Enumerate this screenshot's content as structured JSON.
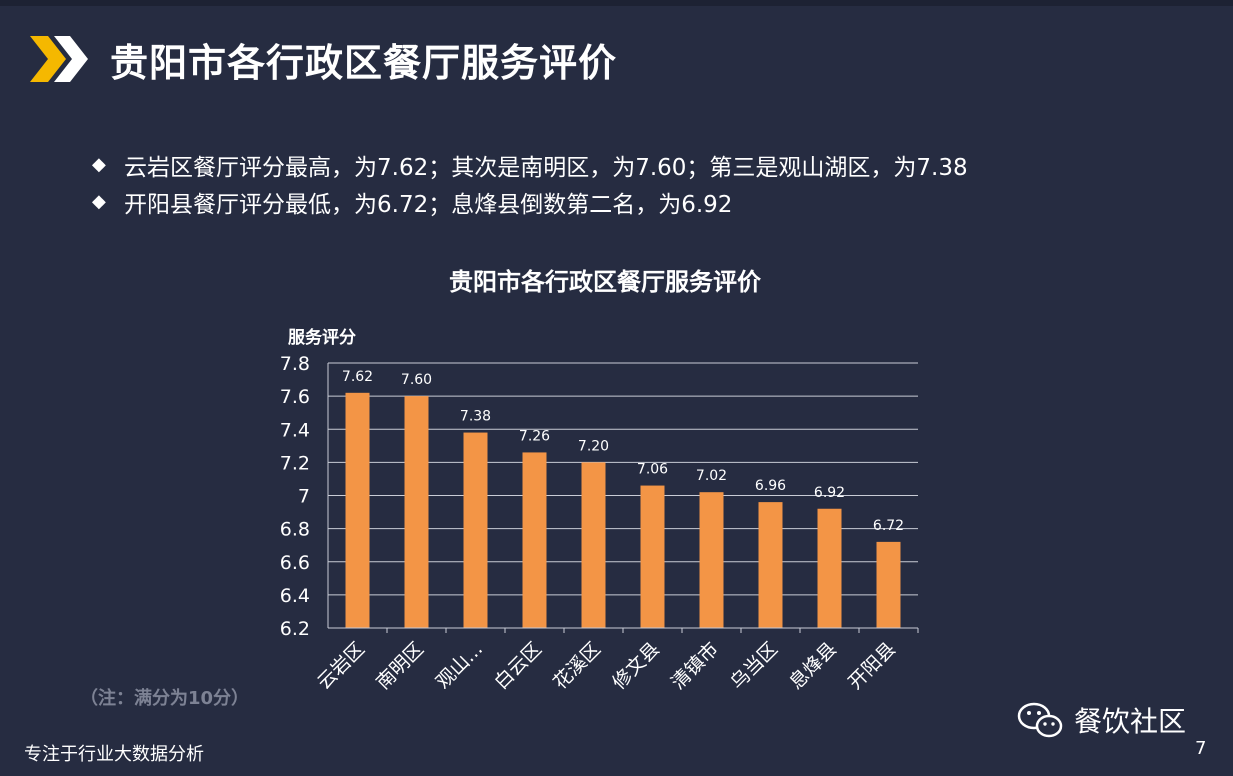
{
  "header": {
    "title": "贵阳市各行政区餐厅服务评价"
  },
  "bullets": [
    "云岩区餐厅评分最高，为7.62；其次是南明区，为7.60；第三是观山湖区，为7.38",
    "开阳县餐厅评分最低，为6.72；息烽县倒数第二名，为6.92"
  ],
  "bullet_icon": "diamond-bullet-icon",
  "note": "（注：满分为10分）",
  "footer": {
    "left_text": "专注于行业大数据分析",
    "page_number": "7",
    "brand": "餐饮社区",
    "brand_icon": "wechat-icon"
  },
  "colors": {
    "background": "#262c41",
    "bar": "#f39546",
    "accent_chevron_yellow": "#f5b800",
    "accent_chevron_white": "#ffffff"
  },
  "chart_data": {
    "type": "bar",
    "title": "贵阳市各行政区餐厅服务评价",
    "ylabel": "服务评分",
    "xlabel": "",
    "categories": [
      "云岩区",
      "南明区",
      "观山...",
      "白云区",
      "花溪区",
      "修文县",
      "清镇市",
      "乌当区",
      "息烽县",
      "开阳县"
    ],
    "values": [
      7.62,
      7.6,
      7.38,
      7.26,
      7.2,
      7.06,
      7.02,
      6.96,
      6.92,
      6.72
    ],
    "value_labels": [
      "7.62",
      "7.60",
      "7.38",
      "7.26",
      "7.20",
      "7.06",
      "7.02",
      "6.96",
      "6.92",
      "6.72"
    ],
    "ylim": [
      6.2,
      7.8
    ],
    "yticks": [
      "6.2",
      "6.4",
      "6.6",
      "6.8",
      "7",
      "7.2",
      "7.4",
      "7.6",
      "7.8"
    ],
    "grid": true,
    "legend": "none"
  }
}
